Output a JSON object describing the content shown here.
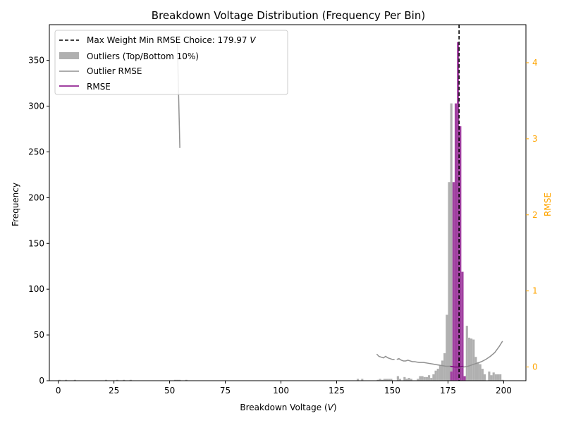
{
  "chart_data": {
    "type": "bar",
    "title": "Breakdown Voltage Distribution (Frequency Per Bin)",
    "xlabel": "Breakdown Voltage (",
    "xlabel_var": "V",
    "xlabel_close": ")",
    "ylabel": "Frequency",
    "y2label": "RMSE",
    "xlim": [
      -4,
      210
    ],
    "ylim": [
      0,
      389
    ],
    "y2lim": [
      -0.18,
      4.5
    ],
    "x_ticks": [
      0,
      25,
      50,
      75,
      100,
      125,
      150,
      175,
      200
    ],
    "y_ticks": [
      0,
      50,
      100,
      150,
      200,
      250,
      300,
      350
    ],
    "y2_ticks": [
      0,
      1,
      2,
      3,
      4
    ],
    "grid": false,
    "legend_placement": "top-left",
    "colors": {
      "outlier_bar": "#b0b0b0",
      "main_bar": "#a040a0",
      "outlier_rmse": "#909090",
      "rmse": "#800080",
      "choice_line": "#000000",
      "right_axis": "#ffa500"
    },
    "choice_line": {
      "label": "Max Weight Min RMSE Choice: 179.97 ",
      "label_var": "V",
      "x": 179.97
    },
    "bin_width": 1.0,
    "series": [
      {
        "name": "Outliers (Top/Bottom 10%)",
        "kind": "bar",
        "x": [
          0.5,
          3.5,
          7.5,
          21.5,
          26.5,
          29.5,
          32.5,
          52.5,
          53.5,
          54.5,
          57.5,
          134.5,
          136.5,
          143.5,
          144.5,
          145.5,
          146.5,
          147.5,
          148.5,
          149.5,
          152.5,
          153.5,
          155.5,
          156.5,
          157.5,
          158.5,
          161.5,
          162.5,
          163.5,
          164.5,
          165.5,
          166.5,
          167.5,
          168.5,
          169.5,
          170.5,
          171.5,
          172.5,
          173.5,
          174.5,
          175.5,
          176.5,
          183.5,
          184.5,
          185.5,
          186.5,
          187.5,
          188.5,
          189.5,
          190.5,
          191.5,
          193.5,
          194.5,
          195.5,
          196.5,
          197.5,
          198.5,
          199.5
        ],
        "values": [
          1,
          1,
          1,
          1,
          1,
          1,
          1,
          1,
          1,
          1,
          1,
          2,
          2,
          1,
          2,
          1,
          2,
          2,
          2,
          2,
          5,
          2,
          4,
          2,
          3,
          2,
          2,
          5,
          5,
          4,
          4,
          6,
          3,
          7,
          11,
          13,
          17,
          22,
          30,
          72,
          217,
          303,
          60,
          47,
          46,
          45,
          26,
          20,
          18,
          13,
          7,
          10,
          6,
          9,
          7,
          7,
          7,
          1
        ]
      },
      {
        "name": "",
        "kind": "bar",
        "x": [
          176.5,
          177.5,
          178.5,
          179.5,
          180.5,
          181.5,
          182.5
        ],
        "values": [
          10,
          217,
          303,
          370,
          278,
          119,
          5
        ]
      },
      {
        "name": "Outlier RMSE",
        "kind": "line",
        "axis": "right",
        "segments": [
          {
            "x": [
              53.5,
              54.6
            ],
            "y": [
              4.25,
              2.88
            ]
          },
          {
            "x": [
              143,
              144,
              145,
              146,
              147,
              148,
              149,
              150,
              151
            ],
            "y": [
              0.17,
              0.14,
              0.13,
              0.12,
              0.14,
              0.12,
              0.11,
              0.1,
              0.1
            ]
          },
          {
            "x": [
              152,
              153,
              154,
              155,
              156,
              157,
              158,
              159,
              160,
              162,
              164,
              166,
              168,
              170,
              172,
              174,
              176,
              178,
              180,
              182,
              184,
              186,
              188,
              190,
              192,
              194,
              196,
              198,
              199.5
            ],
            "y": [
              0.1,
              0.11,
              0.09,
              0.08,
              0.08,
              0.09,
              0.08,
              0.07,
              0.07,
              0.06,
              0.06,
              0.05,
              0.04,
              0.03,
              0.02,
              0.01,
              0.01,
              0.0,
              0.0,
              0.0,
              0.01,
              0.03,
              0.05,
              0.07,
              0.1,
              0.14,
              0.19,
              0.27,
              0.34
            ]
          }
        ]
      },
      {
        "name": "RMSE",
        "kind": "line",
        "axis": "right",
        "segments": [
          {
            "x": [
              176,
              177,
              178,
              179,
              180,
              181,
              182
            ],
            "y": [
              0.01,
              0.005,
              0.0,
              0.0,
              0.0,
              0.005,
              0.01
            ]
          }
        ]
      }
    ]
  }
}
